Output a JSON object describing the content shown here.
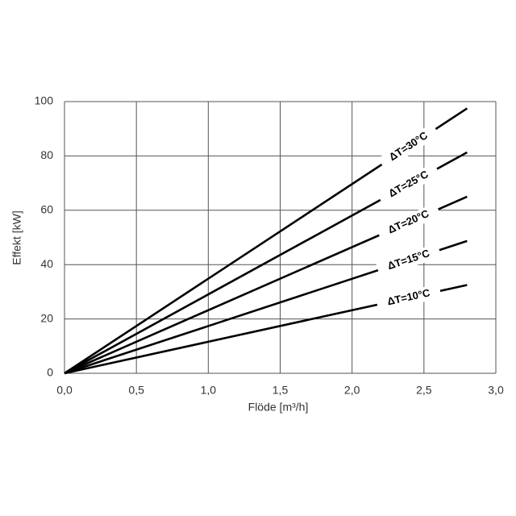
{
  "chart_data": {
    "type": "line",
    "x_label": "Flöde [m³/h]",
    "y_label": "Effekt [kW]",
    "x": [
      0,
      2.8
    ],
    "series": [
      {
        "name": "ΔT=30°C",
        "color": "#000000",
        "values": [
          0,
          97.5
        ]
      },
      {
        "name": "ΔT=25°C",
        "color": "#000000",
        "values": [
          0,
          81.3
        ]
      },
      {
        "name": "ΔT=20°C",
        "color": "#000000",
        "values": [
          0,
          65
        ]
      },
      {
        "name": "ΔT=15°C",
        "color": "#000000",
        "values": [
          0,
          48.7
        ]
      },
      {
        "name": "ΔT=10°C",
        "color": "#000000",
        "values": [
          0,
          32.5
        ]
      }
    ],
    "xlim": [
      0,
      3
    ],
    "ylim": [
      0,
      100
    ],
    "xticks": [
      {
        "value": 0,
        "label": "0,0"
      },
      {
        "value": 0.5,
        "label": "0,5"
      },
      {
        "value": 1,
        "label": "1,0"
      },
      {
        "value": 1.5,
        "label": "1,5"
      },
      {
        "value": 2,
        "label": "2,0"
      },
      {
        "value": 2.5,
        "label": "2,5"
      },
      {
        "value": 3,
        "label": "3,0"
      }
    ],
    "yticks": [
      0,
      20,
      40,
      60,
      80,
      100
    ],
    "grid": true
  }
}
